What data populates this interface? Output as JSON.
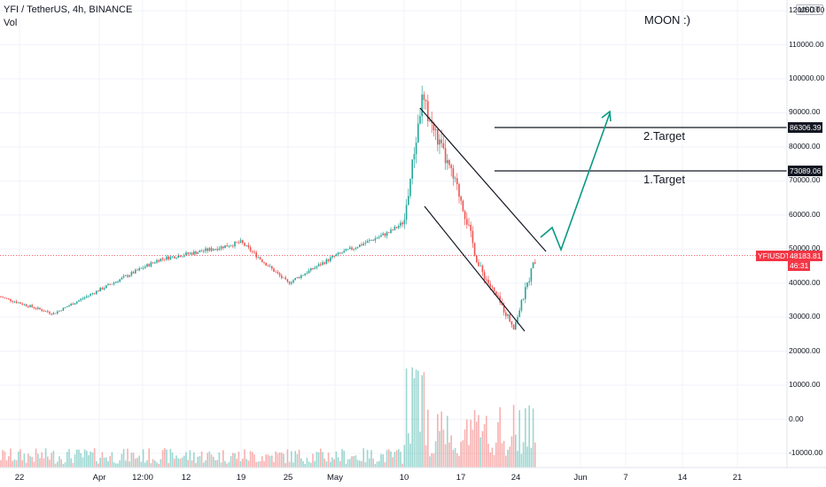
{
  "header": {
    "symbol": "YFI / TetherUS, 4h, BINANCE",
    "indicator": "Vol",
    "currency_button": "USDT"
  },
  "annotations": {
    "moon": "MOON :)",
    "target2": "2.Target",
    "target1": "1.Target"
  },
  "price_tags": {
    "target2_price": "86306.39",
    "target1_price": "73089.06",
    "current_symbol": "YFIUSDT",
    "current_price": "48183.81",
    "countdown": "46:31"
  },
  "colors": {
    "up": "#26a69a",
    "down": "#ef5350",
    "current_price": "#f23645",
    "arrow": "#089981",
    "target_line": "#131722"
  },
  "chart_data": {
    "type": "candlestick",
    "y_axis_labels": [
      "120000.00",
      "110000.00",
      "100000.00",
      "90000.00",
      "80000.00",
      "70000.00",
      "60000.00",
      "50000.00",
      "40000.00",
      "30000.00",
      "20000.00",
      "10000.00",
      "0.00",
      "-10000.00"
    ],
    "x_axis_labels": [
      "22",
      "Apr",
      "12:00",
      "12",
      "19",
      "25",
      "May",
      "10",
      "17",
      "24",
      "Jun",
      "7",
      "14",
      "21"
    ],
    "price_range": [
      20000,
      125000
    ],
    "key_points": [
      {
        "date": "Mar 22",
        "close": 36000
      },
      {
        "date": "Apr",
        "close": 38000
      },
      {
        "date": "Apr 12",
        "close": 47000
      },
      {
        "date": "Apr 19",
        "close": 52000
      },
      {
        "date": "Apr 25",
        "close": 40000
      },
      {
        "date": "May",
        "close": 48000
      },
      {
        "date": "May 10",
        "close": 55000
      },
      {
        "date": "May 12 (peak)",
        "close": 94000
      },
      {
        "date": "May 17",
        "close": 65000
      },
      {
        "date": "May 21",
        "close": 45000
      },
      {
        "date": "May 24 (low)",
        "close": 27000
      },
      {
        "date": "May 26 (last)",
        "close": 48183.81
      }
    ],
    "targets": [
      73089.06,
      86306.39
    ],
    "last_price": 48183.81
  }
}
